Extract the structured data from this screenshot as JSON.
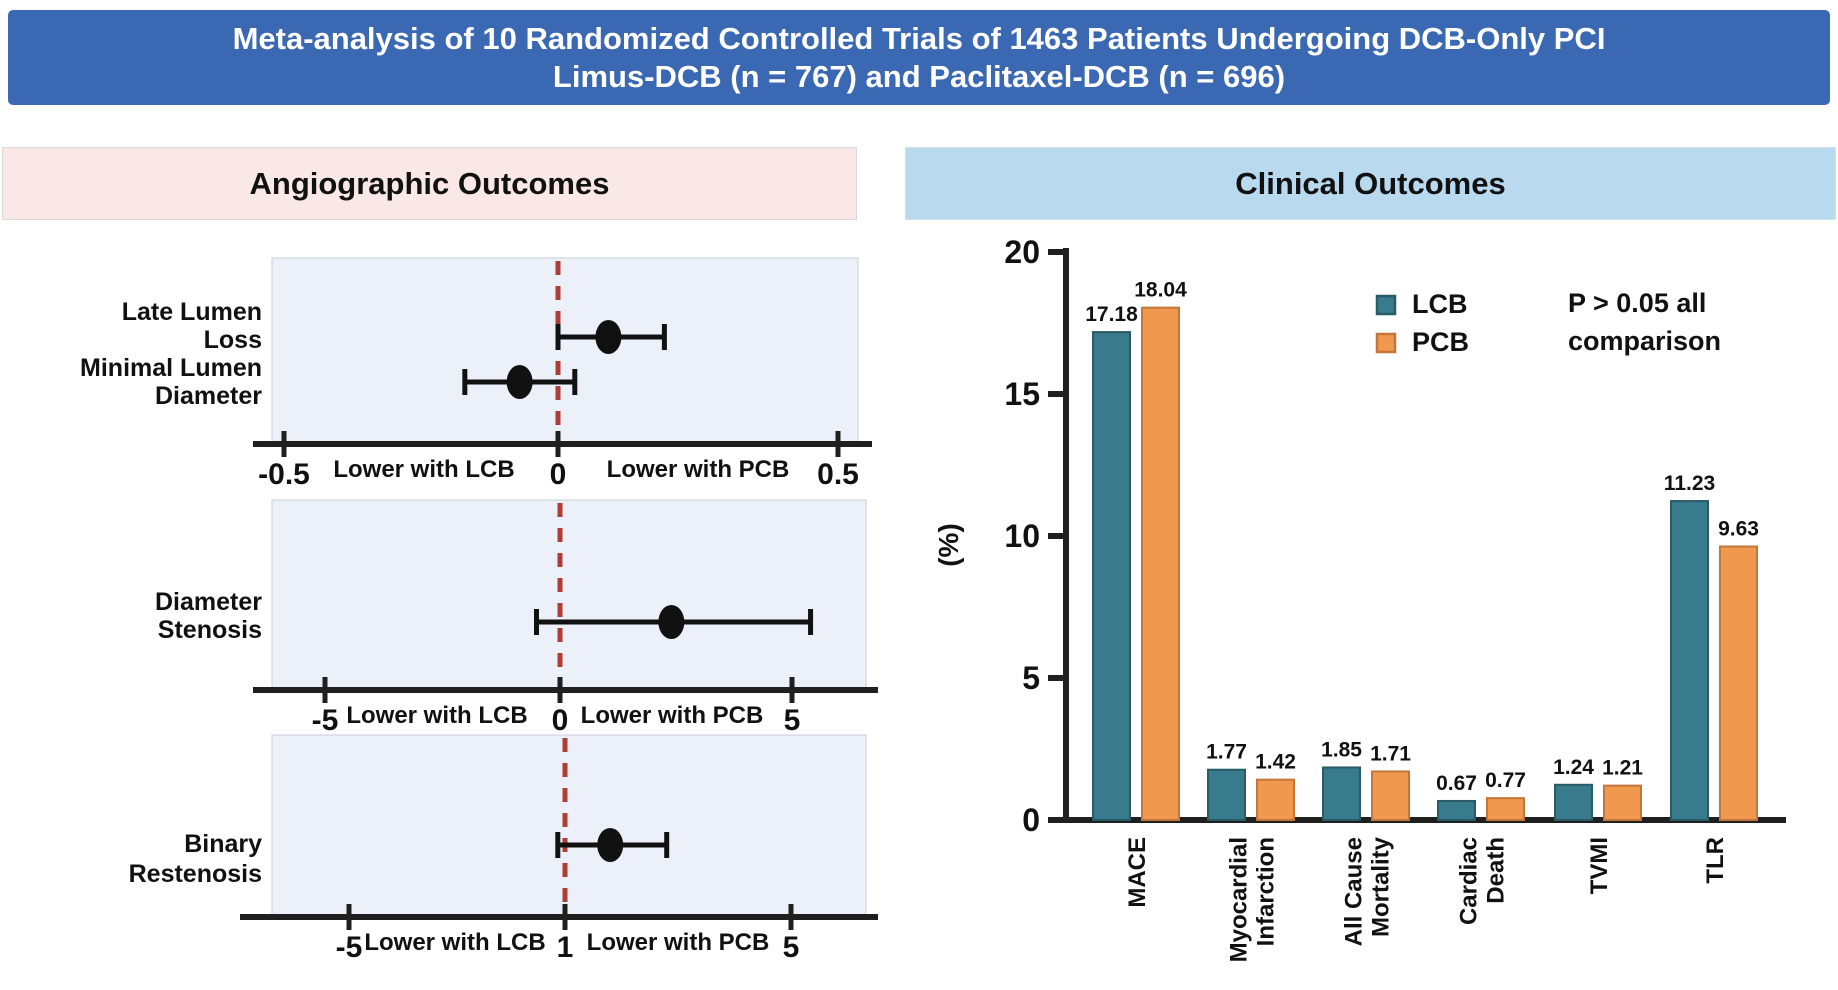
{
  "banner": {
    "line1": "Meta-analysis of 10 Randomized Controlled Trials of 1463 Patients Undergoing DCB-Only PCI",
    "line2": "Limus-DCB (n = 767) and Paclitaxel-DCB (n = 696)"
  },
  "panels": {
    "left_title": "Angiographic Outcomes",
    "right_title": "Clinical Outcomes"
  },
  "colors": {
    "banner_bg": "#3A68B3",
    "banner_text": "#FFFFFF",
    "left_header_bg": "#FAE8E6",
    "right_header_bg": "#B9D9EE",
    "plot_bg": "#EBF0F9",
    "plot_border": "#C9CFDA",
    "axis": "#1F1F1F",
    "marker": "#111111",
    "ref_line": "#AC3E35",
    "teal": "#377B8C",
    "teal_border": "#2A5A66",
    "orange": "#F0984E",
    "orange_border": "#C2763B",
    "label_text": "#111111"
  },
  "chart_data": [
    {
      "type": "forest",
      "title": "Angiographic Outcomes",
      "note": "point estimates with 95% CI; dashed red reference line",
      "plots": [
        {
          "axis_ticks": [
            {
              "value": -0.5,
              "label": "-0.5"
            },
            {
              "value": 0,
              "label": "0"
            },
            {
              "value": 0.5,
              "label": "0.5"
            }
          ],
          "reference_value": 0,
          "left_direction_label": "Lower with LCB",
          "right_direction_label": "Lower with PCB",
          "rows": [
            {
              "label_lines": [
                "Late Lumen",
                "Loss"
              ],
              "estimate": 0.09,
              "ci_low": 0.0,
              "ci_high": 0.19
            },
            {
              "label_lines": [
                "Minimal Lumen",
                "Diameter"
              ],
              "estimate": -0.07,
              "ci_low": -0.17,
              "ci_high": 0.03
            }
          ]
        },
        {
          "axis_ticks": [
            {
              "value": -5,
              "label": "-5"
            },
            {
              "value": 0,
              "label": "0"
            },
            {
              "value": 5,
              "label": "5"
            }
          ],
          "reference_value": 0,
          "left_direction_label": "Lower with LCB",
          "right_direction_label": "Lower with PCB",
          "rows": [
            {
              "label_lines": [
                "Diameter",
                "Stenosis"
              ],
              "estimate": 2.4,
              "ci_low": -0.5,
              "ci_high": 5.4
            }
          ]
        },
        {
          "axis_ticks": [
            {
              "value": -5,
              "label": "-5"
            },
            {
              "value": 1,
              "label": "1"
            },
            {
              "value": 5,
              "label": "5"
            }
          ],
          "reference_value": 1,
          "left_direction_label": "Lower with LCB",
          "right_direction_label": "Lower with PCB",
          "rows": [
            {
              "label_lines": [
                "Binary",
                "Restenosis"
              ],
              "estimate": 1.8,
              "ci_low": 0.8,
              "ci_high": 2.8
            }
          ]
        }
      ]
    },
    {
      "type": "bar",
      "title": "Clinical Outcomes",
      "ylabel": "(%)",
      "ylim": [
        0,
        20
      ],
      "yticks": [
        0,
        5,
        10,
        15,
        20
      ],
      "grid": false,
      "legend_position": "top-center",
      "categories": [
        [
          "MACE"
        ],
        [
          "Myocardial",
          "Infarction"
        ],
        [
          "All Cause",
          "Mortality"
        ],
        [
          "Cardiac",
          "Death"
        ],
        [
          "TVMI"
        ],
        [
          "TLR"
        ]
      ],
      "series": [
        {
          "name": "LCB",
          "color_key": "teal",
          "values": [
            17.18,
            1.77,
            1.85,
            0.67,
            1.24,
            11.23
          ]
        },
        {
          "name": "PCB",
          "color_key": "orange",
          "values": [
            18.04,
            1.42,
            1.71,
            0.77,
            1.21,
            9.63
          ]
        }
      ],
      "annotation_lines": [
        "P > 0.05 all",
        "comparison"
      ]
    }
  ]
}
